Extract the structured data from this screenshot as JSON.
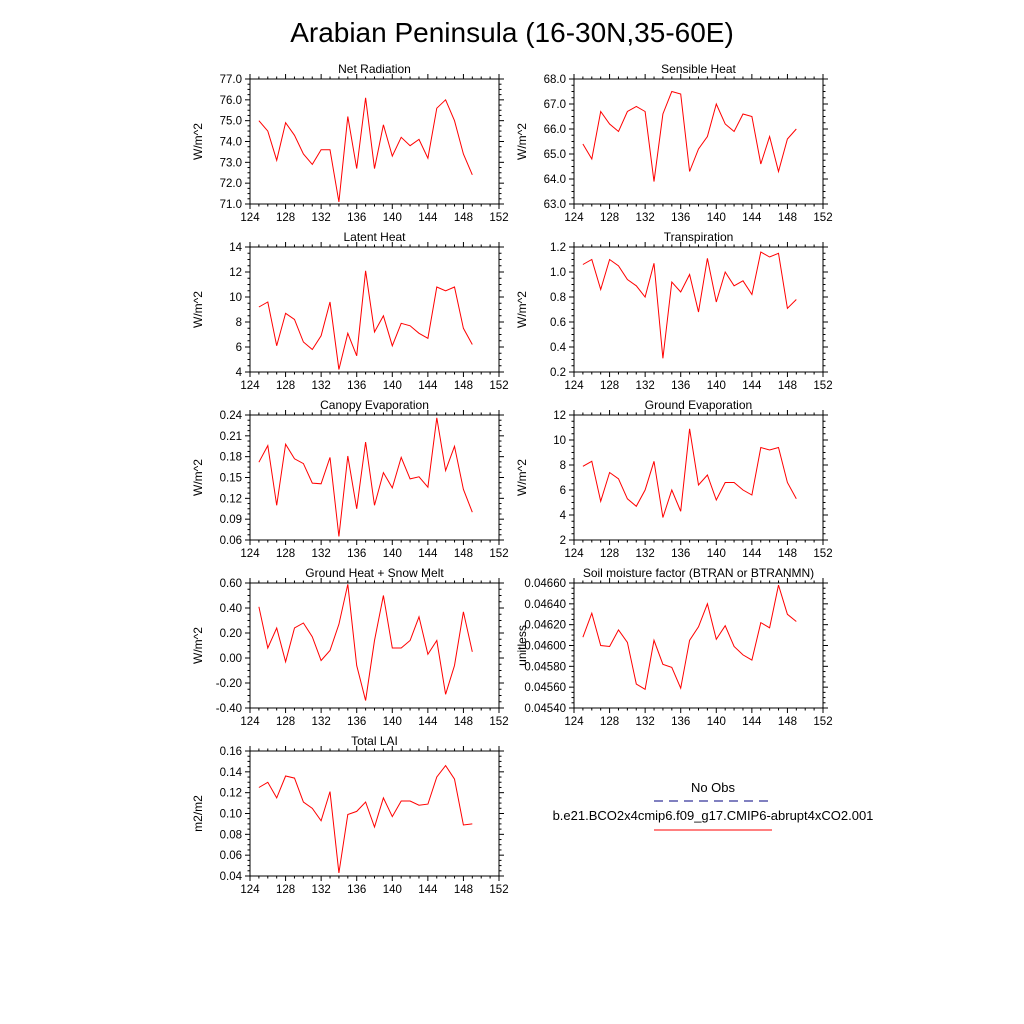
{
  "figure": {
    "title": "Arabian Peninsula (16-30N,35-60E)"
  },
  "legend": {
    "entries": [
      {
        "label": "No Obs",
        "color": "#000080",
        "style": "dashed"
      },
      {
        "label": "b.e21.BCO2x4cmip6.f09_g17.CMIP6-abrupt4xCO2.001",
        "color": "#ff0000",
        "style": "solid"
      }
    ]
  },
  "chart_data": [
    {
      "type": "line",
      "title": "Net Radiation",
      "ylabel": "W/m^2",
      "xlim": [
        124,
        152
      ],
      "xticks": [
        124,
        128,
        132,
        136,
        140,
        144,
        148,
        152
      ],
      "xtick_labels": [
        "124",
        "128",
        "132",
        "136",
        "140",
        "144",
        "148",
        "152"
      ],
      "ylim": [
        71.0,
        77.0
      ],
      "yticks": [
        71.0,
        72.0,
        73.0,
        74.0,
        75.0,
        76.0,
        77.0
      ],
      "ytick_labels": [
        "71.0",
        "72.0",
        "73.0",
        "74.0",
        "75.0",
        "76.0",
        "77.0"
      ],
      "series": [
        {
          "color": "#ff0000",
          "x": [
            125,
            126,
            127,
            128,
            129,
            130,
            131,
            132,
            133,
            134,
            135,
            136,
            137,
            138,
            139,
            140,
            141,
            142,
            143,
            144,
            145,
            146,
            147,
            148,
            149
          ],
          "y": [
            75.0,
            74.5,
            73.1,
            74.9,
            74.3,
            73.4,
            72.9,
            73.6,
            73.6,
            71.1,
            75.2,
            72.7,
            76.1,
            72.7,
            74.8,
            73.3,
            74.2,
            73.8,
            74.1,
            73.2,
            75.6,
            76.0,
            75.0,
            73.4,
            72.4
          ]
        }
      ]
    },
    {
      "type": "line",
      "title": "Sensible Heat",
      "ylabel": "W/m^2",
      "xlim": [
        124,
        152
      ],
      "xticks": [
        124,
        128,
        132,
        136,
        140,
        144,
        148,
        152
      ],
      "xtick_labels": [
        "124",
        "128",
        "132",
        "136",
        "140",
        "144",
        "148",
        "152"
      ],
      "ylim": [
        63.0,
        68.0
      ],
      "yticks": [
        63.0,
        64.0,
        65.0,
        66.0,
        67.0,
        68.0
      ],
      "ytick_labels": [
        "63.0",
        "64.0",
        "65.0",
        "66.0",
        "67.0",
        "68.0"
      ],
      "series": [
        {
          "color": "#ff0000",
          "x": [
            125,
            126,
            127,
            128,
            129,
            130,
            131,
            132,
            133,
            134,
            135,
            136,
            137,
            138,
            139,
            140,
            141,
            142,
            143,
            144,
            145,
            146,
            147,
            148,
            149
          ],
          "y": [
            65.4,
            64.8,
            66.7,
            66.2,
            65.9,
            66.7,
            66.9,
            66.7,
            63.9,
            66.6,
            67.5,
            67.4,
            64.3,
            65.2,
            65.7,
            67.0,
            66.2,
            65.9,
            66.6,
            66.5,
            64.6,
            65.7,
            64.3,
            65.6,
            66.0
          ]
        }
      ]
    },
    {
      "type": "line",
      "title": "Latent Heat",
      "ylabel": "W/m^2",
      "xlim": [
        124,
        152
      ],
      "xticks": [
        124,
        128,
        132,
        136,
        140,
        144,
        148,
        152
      ],
      "xtick_labels": [
        "124",
        "128",
        "132",
        "136",
        "140",
        "144",
        "148",
        "152"
      ],
      "ylim": [
        4,
        14
      ],
      "yticks": [
        4,
        6,
        8,
        10,
        12,
        14
      ],
      "ytick_labels": [
        "4",
        "6",
        "8",
        "10",
        "12",
        "14"
      ],
      "series": [
        {
          "color": "#ff0000",
          "x": [
            125,
            126,
            127,
            128,
            129,
            130,
            131,
            132,
            133,
            134,
            135,
            136,
            137,
            138,
            139,
            140,
            141,
            142,
            143,
            144,
            145,
            146,
            147,
            148,
            149
          ],
          "y": [
            9.2,
            9.6,
            6.1,
            8.7,
            8.2,
            6.4,
            5.8,
            6.9,
            9.6,
            4.2,
            7.1,
            5.3,
            12.1,
            7.2,
            8.5,
            6.1,
            7.9,
            7.7,
            7.1,
            6.7,
            10.8,
            10.5,
            10.8,
            7.5,
            6.2
          ]
        }
      ]
    },
    {
      "type": "line",
      "title": "Transpiration",
      "ylabel": "W/m^2",
      "xlim": [
        124,
        152
      ],
      "xticks": [
        124,
        128,
        132,
        136,
        140,
        144,
        148,
        152
      ],
      "xtick_labels": [
        "124",
        "128",
        "132",
        "136",
        "140",
        "144",
        "148",
        "152"
      ],
      "ylim": [
        0.2,
        1.2
      ],
      "yticks": [
        0.2,
        0.4,
        0.6,
        0.8,
        1.0,
        1.2
      ],
      "ytick_labels": [
        "0.2",
        "0.4",
        "0.6",
        "0.8",
        "1.0",
        "1.2"
      ],
      "series": [
        {
          "color": "#ff0000",
          "x": [
            125,
            126,
            127,
            128,
            129,
            130,
            131,
            132,
            133,
            134,
            135,
            136,
            137,
            138,
            139,
            140,
            141,
            142,
            143,
            144,
            145,
            146,
            147,
            148,
            149
          ],
          "y": [
            1.06,
            1.1,
            0.86,
            1.1,
            1.05,
            0.94,
            0.89,
            0.8,
            1.07,
            0.31,
            0.92,
            0.84,
            0.98,
            0.68,
            1.11,
            0.76,
            1.0,
            0.89,
            0.93,
            0.82,
            1.16,
            1.12,
            1.15,
            0.71,
            0.78
          ]
        }
      ]
    },
    {
      "type": "line",
      "title": "Canopy Evaporation",
      "ylabel": "W/m^2",
      "xlim": [
        124,
        152
      ],
      "xticks": [
        124,
        128,
        132,
        136,
        140,
        144,
        148,
        152
      ],
      "xtick_labels": [
        "124",
        "128",
        "132",
        "136",
        "140",
        "144",
        "148",
        "152"
      ],
      "ylim": [
        0.06,
        0.24
      ],
      "yticks": [
        0.06,
        0.09,
        0.12,
        0.15,
        0.18,
        0.21,
        0.24
      ],
      "ytick_labels": [
        "0.06",
        "0.09",
        "0.12",
        "0.15",
        "0.18",
        "0.21",
        "0.24"
      ],
      "series": [
        {
          "color": "#ff0000",
          "x": [
            125,
            126,
            127,
            128,
            129,
            130,
            131,
            132,
            133,
            134,
            135,
            136,
            137,
            138,
            139,
            140,
            141,
            142,
            143,
            144,
            145,
            146,
            147,
            148,
            149
          ],
          "y": [
            0.172,
            0.196,
            0.11,
            0.198,
            0.177,
            0.17,
            0.142,
            0.141,
            0.179,
            0.065,
            0.181,
            0.105,
            0.201,
            0.11,
            0.157,
            0.135,
            0.179,
            0.148,
            0.151,
            0.136,
            0.236,
            0.16,
            0.195,
            0.133,
            0.1
          ]
        }
      ]
    },
    {
      "type": "line",
      "title": "Ground Evaporation",
      "ylabel": "W/m^2",
      "xlim": [
        124,
        152
      ],
      "xticks": [
        124,
        128,
        132,
        136,
        140,
        144,
        148,
        152
      ],
      "xtick_labels": [
        "124",
        "128",
        "132",
        "136",
        "140",
        "144",
        "148",
        "152"
      ],
      "ylim": [
        2,
        12
      ],
      "yticks": [
        2,
        4,
        6,
        8,
        10,
        12
      ],
      "ytick_labels": [
        "2",
        "4",
        "6",
        "8",
        "10",
        "12"
      ],
      "series": [
        {
          "color": "#ff0000",
          "x": [
            125,
            126,
            127,
            128,
            129,
            130,
            131,
            132,
            133,
            134,
            135,
            136,
            137,
            138,
            139,
            140,
            141,
            142,
            143,
            144,
            145,
            146,
            147,
            148,
            149
          ],
          "y": [
            7.9,
            8.3,
            5.1,
            7.4,
            6.9,
            5.3,
            4.7,
            6.0,
            8.3,
            3.8,
            6.0,
            4.3,
            10.9,
            6.4,
            7.2,
            5.2,
            6.6,
            6.6,
            6.0,
            5.6,
            9.4,
            9.2,
            9.4,
            6.6,
            5.3
          ]
        }
      ]
    },
    {
      "type": "line",
      "title": "Ground Heat + Snow Melt",
      "ylabel": "W/m^2",
      "xlim": [
        124,
        152
      ],
      "xticks": [
        124,
        128,
        132,
        136,
        140,
        144,
        148,
        152
      ],
      "xtick_labels": [
        "124",
        "128",
        "132",
        "136",
        "140",
        "144",
        "148",
        "152"
      ],
      "ylim": [
        -0.4,
        0.6
      ],
      "yticks": [
        -0.4,
        -0.2,
        0.0,
        0.2,
        0.4,
        0.6
      ],
      "ytick_labels": [
        "-0.40",
        "-0.20",
        "0.00",
        "0.20",
        "0.40",
        "0.60"
      ],
      "series": [
        {
          "color": "#ff0000",
          "x": [
            125,
            126,
            127,
            128,
            129,
            130,
            131,
            132,
            133,
            134,
            135,
            136,
            137,
            138,
            139,
            140,
            141,
            142,
            143,
            144,
            145,
            146,
            147,
            148,
            149
          ],
          "y": [
            0.41,
            0.08,
            0.24,
            -0.03,
            0.24,
            0.28,
            0.17,
            -0.02,
            0.06,
            0.27,
            0.59,
            -0.06,
            -0.34,
            0.14,
            0.5,
            0.08,
            0.08,
            0.14,
            0.33,
            0.03,
            0.14,
            -0.29,
            -0.06,
            0.37,
            0.05
          ]
        }
      ]
    },
    {
      "type": "line",
      "title": "Soil moisture factor (BTRAN or BTRANMN)",
      "ylabel": "unitless",
      "xlim": [
        124,
        152
      ],
      "xticks": [
        124,
        128,
        132,
        136,
        140,
        144,
        148,
        152
      ],
      "xtick_labels": [
        "124",
        "128",
        "132",
        "136",
        "140",
        "144",
        "148",
        "152"
      ],
      "ylim": [
        0.0454,
        0.0466
      ],
      "yticks": [
        0.0454,
        0.0456,
        0.0458,
        0.046,
        0.0462,
        0.0464,
        0.0466
      ],
      "ytick_labels": [
        "0.04540",
        "0.04560",
        "0.04580",
        "0.04600",
        "0.04620",
        "0.04640",
        "0.04660"
      ],
      "series": [
        {
          "color": "#ff0000",
          "x": [
            125,
            126,
            127,
            128,
            129,
            130,
            131,
            132,
            133,
            134,
            135,
            136,
            137,
            138,
            139,
            140,
            141,
            142,
            143,
            144,
            145,
            146,
            147,
            148,
            149
          ],
          "y": [
            0.04608,
            0.04631,
            0.046,
            0.04599,
            0.04615,
            0.04603,
            0.04563,
            0.04558,
            0.04605,
            0.04582,
            0.04579,
            0.04559,
            0.04605,
            0.04618,
            0.0464,
            0.04606,
            0.04619,
            0.04599,
            0.04591,
            0.04586,
            0.04622,
            0.04617,
            0.04658,
            0.0463,
            0.04623
          ]
        }
      ]
    },
    {
      "type": "line",
      "title": "Total LAI",
      "ylabel": "m2/m2",
      "xlim": [
        124,
        152
      ],
      "xticks": [
        124,
        128,
        132,
        136,
        140,
        144,
        148,
        152
      ],
      "xtick_labels": [
        "124",
        "128",
        "132",
        "136",
        "140",
        "144",
        "148",
        "152"
      ],
      "ylim": [
        0.04,
        0.16
      ],
      "yticks": [
        0.04,
        0.06,
        0.08,
        0.1,
        0.12,
        0.14,
        0.16
      ],
      "ytick_labels": [
        "0.04",
        "0.06",
        "0.08",
        "0.10",
        "0.12",
        "0.14",
        "0.16"
      ],
      "series": [
        {
          "color": "#ff0000",
          "x": [
            125,
            126,
            127,
            128,
            129,
            130,
            131,
            132,
            133,
            134,
            135,
            136,
            137,
            138,
            139,
            140,
            141,
            142,
            143,
            144,
            145,
            146,
            147,
            148,
            149
          ],
          "y": [
            0.125,
            0.13,
            0.115,
            0.136,
            0.134,
            0.111,
            0.105,
            0.093,
            0.121,
            0.043,
            0.099,
            0.102,
            0.111,
            0.087,
            0.115,
            0.097,
            0.112,
            0.112,
            0.108,
            0.109,
            0.135,
            0.146,
            0.133,
            0.089,
            0.09
          ]
        }
      ]
    }
  ]
}
